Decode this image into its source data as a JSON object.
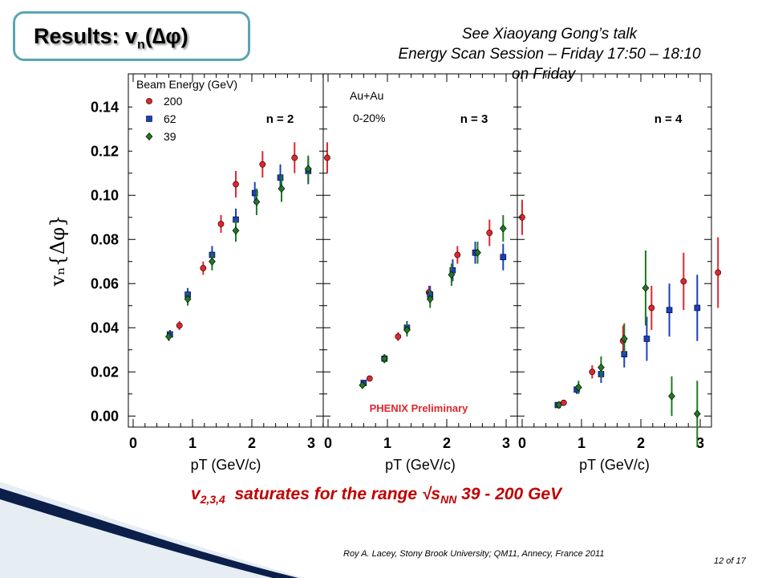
{
  "slide": {
    "title": "Results: v",
    "title_sub": "n",
    "title_tail": "(∆φ)",
    "talk_note": [
      "See Xiaoyang Gong’s talk",
      "Energy Scan Session – Friday 17:50 – 18:10",
      "on Friday"
    ],
    "conclusion_pre": "v",
    "conclusion_sub": "2,3,4",
    "conclusion_mid": "  saturates for the range √s",
    "conclusion_sub2": "NN",
    "conclusion_tail": " 39 - 200 GeV",
    "footer": "Roy A. Lacey, Stony Brook University; QM11, Annecy, France 2011",
    "page": "12 of 17",
    "colors": {
      "title_border": "#5aa6b4",
      "conclusion": "#c00000",
      "s200": "#e0262d",
      "s62": "#1a3fc0",
      "s39": "#1e7a1e",
      "swoosh": "#0b1f4a"
    }
  },
  "chart_data": {
    "type": "scatter",
    "ylabel": "vₙ{Δφ}",
    "xlabel": "pT (GeV/c)",
    "ylim": [
      -0.005,
      0.155
    ],
    "xlim": [
      0,
      3.5
    ],
    "yticks": [
      "0.00",
      "0.02",
      "0.04",
      "0.06",
      "0.08",
      "0.10",
      "0.12",
      "0.14"
    ],
    "xticks": [
      "0",
      "1",
      "2",
      "3"
    ],
    "legend_title": "Beam Energy (GeV)",
    "annotations": {
      "system": "Au+Au",
      "centrality": "0-20%",
      "preliminary": "PHENIX Preliminary"
    },
    "panels": [
      {
        "label": "n = 2",
        "series": [
          {
            "name": "200",
            "x": [
              0.78,
              1.18,
              1.48,
              1.73,
              2.18,
              2.72,
              3.27
            ],
            "y": [
              0.041,
              0.067,
              0.087,
              0.105,
              0.114,
              0.117,
              0.117
            ],
            "err": [
              0.002,
              0.003,
              0.004,
              0.006,
              0.006,
              0.007,
              0.007
            ]
          },
          {
            "name": "62",
            "x": [
              0.62,
              0.92,
              1.33,
              1.73,
              2.05,
              2.48,
              2.95
            ],
            "y": [
              0.037,
              0.055,
              0.073,
              0.089,
              0.101,
              0.108,
              0.111
            ],
            "err": [
              0.002,
              0.003,
              0.004,
              0.005,
              0.005,
              0.006,
              0.006
            ]
          },
          {
            "name": "39",
            "x": [
              0.6,
              0.92,
              1.33,
              1.73,
              2.08,
              2.5,
              2.95
            ],
            "y": [
              0.036,
              0.053,
              0.07,
              0.084,
              0.097,
              0.103,
              0.112
            ],
            "err": [
              0.002,
              0.003,
              0.004,
              0.005,
              0.006,
              0.006,
              0.006
            ]
          }
        ]
      },
      {
        "label": "n = 3",
        "series": [
          {
            "name": "200",
            "x": [
              0.7,
              1.18,
              1.7,
              2.18,
              2.72,
              3.27
            ],
            "y": [
              0.017,
              0.036,
              0.056,
              0.073,
              0.083,
              0.09
            ],
            "err": [
              0.001,
              0.002,
              0.003,
              0.004,
              0.006,
              0.008
            ]
          },
          {
            "name": "62",
            "x": [
              0.6,
              0.95,
              1.33,
              1.72,
              2.1,
              2.48,
              2.95
            ],
            "y": [
              0.015,
              0.026,
              0.04,
              0.055,
              0.066,
              0.074,
              0.072
            ],
            "err": [
              0.001,
              0.002,
              0.003,
              0.004,
              0.005,
              0.005,
              0.006
            ]
          },
          {
            "name": "39",
            "x": [
              0.58,
              0.95,
              1.33,
              1.72,
              2.08,
              2.52,
              2.95
            ],
            "y": [
              0.014,
              0.026,
              0.039,
              0.053,
              0.064,
              0.074,
              0.085
            ],
            "err": [
              0.001,
              0.002,
              0.003,
              0.004,
              0.005,
              0.005,
              0.006
            ]
          }
        ]
      },
      {
        "label": "n = 4",
        "series": [
          {
            "name": "200",
            "x": [
              0.7,
              1.18,
              1.7,
              2.18,
              2.72,
              3.3
            ],
            "y": [
              0.006,
              0.02,
              0.034,
              0.049,
              0.061,
              0.065
            ],
            "err": [
              0.001,
              0.003,
              0.007,
              0.01,
              0.013,
              0.016
            ]
          },
          {
            "name": "62",
            "x": [
              0.6,
              0.92,
              1.33,
              1.72,
              2.1,
              2.48,
              2.95
            ],
            "y": [
              0.005,
              0.012,
              0.019,
              0.028,
              0.035,
              0.048,
              0.049
            ],
            "err": [
              0.001,
              0.002,
              0.004,
              0.006,
              0.01,
              0.012,
              0.015
            ]
          },
          {
            "name": "39",
            "x": [
              0.62,
              0.95,
              1.33,
              1.72,
              2.08,
              2.52,
              2.95
            ],
            "y": [
              0.005,
              0.013,
              0.022,
              0.035,
              0.058,
              0.009,
              0.001
            ],
            "err": [
              0.001,
              0.003,
              0.005,
              0.007,
              0.017,
              0.009,
              0.015
            ]
          }
        ]
      }
    ]
  }
}
